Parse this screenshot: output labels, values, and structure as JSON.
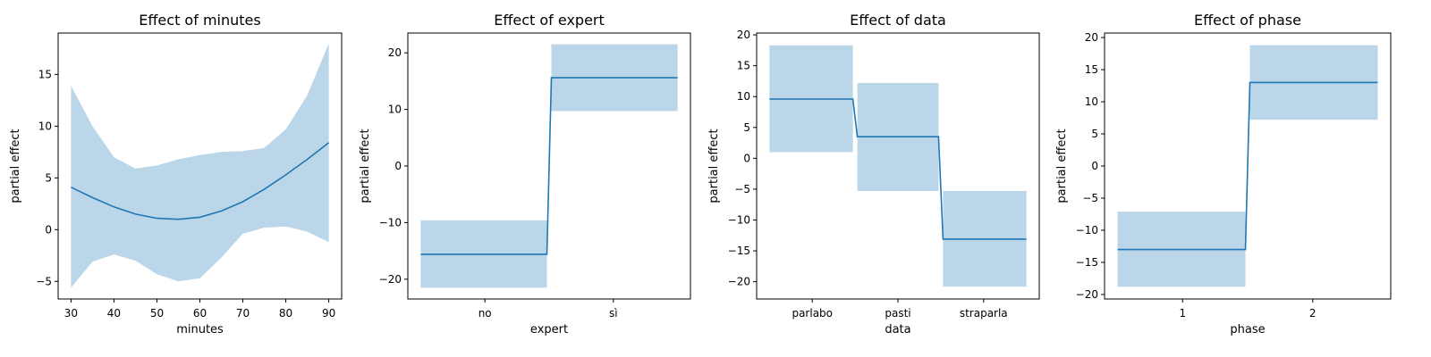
{
  "chart_data": [
    {
      "type": "line",
      "title": "Effect of minutes",
      "xlabel": "minutes",
      "ylabel": "partial effect",
      "xlim": [
        27.0,
        93.0
      ],
      "ylim": [
        -6.7,
        19.0
      ],
      "xticks": [
        30,
        40,
        50,
        60,
        70,
        80,
        90
      ],
      "yticks": [
        -5,
        0,
        5,
        10,
        15
      ],
      "colors": {
        "line": "#1f77b4",
        "band": "#1f77b4"
      },
      "series": [
        {
          "x": [
            30,
            35,
            40,
            45,
            50,
            55,
            60,
            65,
            70,
            75,
            80,
            85,
            90
          ],
          "y": [
            4.1,
            3.1,
            2.2,
            1.5,
            1.1,
            1.0,
            1.2,
            1.8,
            2.7,
            3.9,
            5.3,
            6.8,
            8.4
          ],
          "lower": [
            -5.6,
            -3.1,
            -2.4,
            -3.0,
            -4.3,
            -5.0,
            -4.7,
            -2.7,
            -0.4,
            0.2,
            0.3,
            -0.2,
            -1.2
          ],
          "upper": [
            13.9,
            10.0,
            7.0,
            5.9,
            6.2,
            6.8,
            7.2,
            7.5,
            7.6,
            7.9,
            9.7,
            13.0,
            18.0
          ]
        }
      ]
    },
    {
      "type": "step",
      "title": "Effect of expert",
      "xlabel": "expert",
      "ylabel": "partial effect",
      "categories": [
        "no",
        "sì"
      ],
      "values": [
        -15.6,
        15.6
      ],
      "lower": [
        -21.5,
        9.7
      ],
      "upper": [
        -9.6,
        21.5
      ],
      "ylim": [
        -23.5,
        23.5
      ],
      "yticks": [
        -20,
        -10,
        0,
        10,
        20
      ],
      "colors": {
        "line": "#1f77b4",
        "band": "#1f77b4"
      }
    },
    {
      "type": "step",
      "title": "Effect of data",
      "xlabel": "data",
      "ylabel": "partial effect",
      "categories": [
        "parlabo",
        "pasti",
        "straparla"
      ],
      "values": [
        9.6,
        3.5,
        -13.1
      ],
      "lower": [
        1.0,
        -5.3,
        -20.8
      ],
      "upper": [
        18.3,
        12.2,
        -5.3
      ],
      "ylim": [
        -22.8,
        20.3
      ],
      "yticks": [
        -20,
        -15,
        -10,
        -5,
        0,
        5,
        10,
        15,
        20
      ],
      "colors": {
        "line": "#1f77b4",
        "band": "#1f77b4"
      }
    },
    {
      "type": "step",
      "title": "Effect of phase",
      "xlabel": "phase",
      "ylabel": "partial effect",
      "categories": [
        "1",
        "2"
      ],
      "values": [
        -13.0,
        13.0
      ],
      "lower": [
        -18.8,
        7.2
      ],
      "upper": [
        -7.1,
        18.8
      ],
      "ylim": [
        -20.7,
        20.7
      ],
      "yticks": [
        -20,
        -15,
        -10,
        -5,
        0,
        5,
        10,
        15,
        20
      ],
      "colors": {
        "line": "#1f77b4",
        "band": "#1f77b4"
      }
    }
  ]
}
